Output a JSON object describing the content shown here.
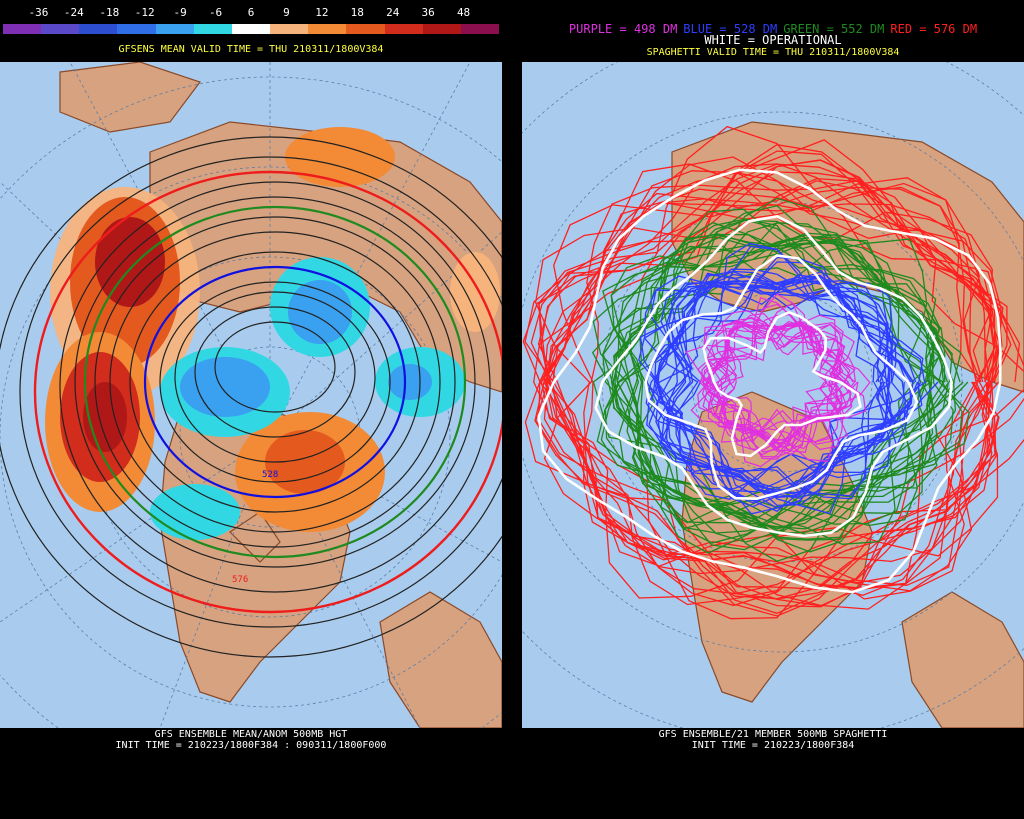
{
  "left": {
    "legend": {
      "ticks": [
        "-36",
        "-24",
        "-18",
        "-12",
        "-9",
        "-6",
        "6",
        "9",
        "12",
        "18",
        "24",
        "36",
        "48"
      ],
      "colors": [
        "#7f2fb3",
        "#5a49c8",
        "#2c4ecf",
        "#2f6ee6",
        "#3aa0f0",
        "#31d8e4",
        "#ffffff",
        "#f6b37c",
        "#f28a36",
        "#e45a1e",
        "#d12c1c",
        "#b01818",
        "#8b0f4f"
      ]
    },
    "title": "GFSENS MEAN VALID TIME = THU 210311/1800V384",
    "contour_label_528": "528",
    "contour_label_576": "576",
    "footer_line1": "GFS ENSEMBLE MEAN/ANOM 500MB HGT",
    "footer_line2": "INIT TIME = 210223/1800F384 : 090311/1800F000"
  },
  "right": {
    "legend": {
      "purple": "PURPLE = 498 DM",
      "blue": "BLUE = 528 DM",
      "green": "GREEN = 552 DM",
      "red": "RED = 576 DM",
      "white": "WHITE = OPERATIONAL"
    },
    "legend_colors": {
      "purple": "#e030e0",
      "blue": "#2e3dff",
      "green": "#1f8a1f",
      "red": "#ff2020",
      "white": "#ffffff"
    },
    "title": "SPAGHETTI VALID TIME = THU 210311/1800V384",
    "footer_line1": "GFS ENSEMBLE/21 MEMBER 500MB SPAGHETTI",
    "footer_line2": "INIT TIME = 210223/1800F384"
  },
  "colors": {
    "ocean": "#a9ccee",
    "land": "#d7a27f",
    "coast": "#8a4a2a",
    "grid": "#5c7fa8"
  }
}
